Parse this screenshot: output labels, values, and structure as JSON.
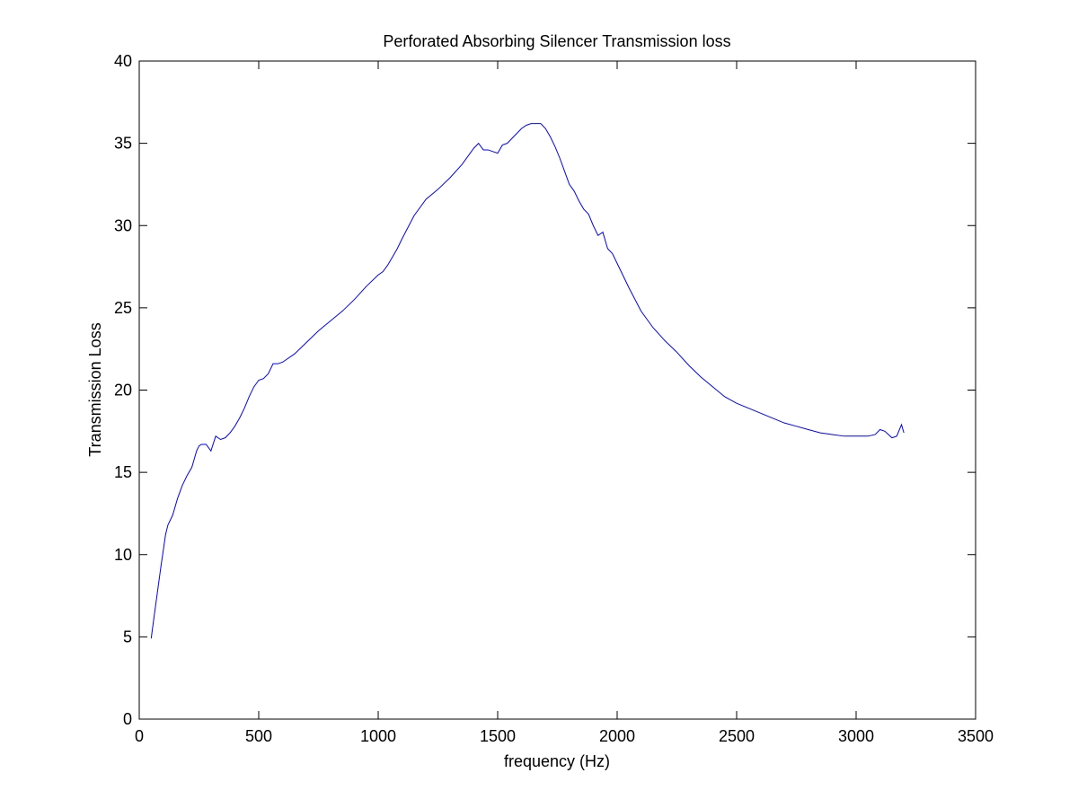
{
  "chart_data": {
    "type": "line",
    "title": "Perforated Absorbing Silencer Transmission loss",
    "xlabel": "frequency (Hz)",
    "ylabel": "Transmission Loss",
    "xlim": [
      0,
      3500
    ],
    "ylim": [
      0,
      40
    ],
    "xticks": [
      0,
      500,
      1000,
      1500,
      2000,
      2500,
      3000,
      3500
    ],
    "yticks": [
      0,
      5,
      10,
      15,
      20,
      25,
      30,
      35,
      40
    ],
    "grid": false,
    "line_color": "#0000ff",
    "series": [
      {
        "x": [
          50,
          60,
          75,
          90,
          100,
          110,
          120,
          140,
          160,
          180,
          200,
          220,
          240,
          250,
          260,
          280,
          300,
          320,
          340,
          360,
          380,
          400,
          420,
          440,
          460,
          480,
          500,
          520,
          540,
          560,
          580,
          600,
          650,
          700,
          750,
          800,
          850,
          900,
          950,
          1000,
          1020,
          1040,
          1060,
          1080,
          1100,
          1150,
          1200,
          1250,
          1300,
          1350,
          1400,
          1420,
          1440,
          1460,
          1480,
          1500,
          1520,
          1540,
          1560,
          1580,
          1600,
          1620,
          1640,
          1660,
          1680,
          1700,
          1720,
          1740,
          1760,
          1780,
          1800,
          1820,
          1840,
          1860,
          1880,
          1900,
          1920,
          1940,
          1960,
          1980,
          2000,
          2050,
          2100,
          2150,
          2200,
          2250,
          2300,
          2350,
          2400,
          2450,
          2500,
          2550,
          2600,
          2650,
          2700,
          2750,
          2800,
          2850,
          2900,
          2950,
          3000,
          3050,
          3080,
          3100,
          3120,
          3150,
          3170,
          3190,
          3200
        ],
        "y": [
          4.9,
          6.0,
          7.6,
          9.2,
          10.2,
          11.2,
          11.8,
          12.4,
          13.4,
          14.2,
          14.8,
          15.3,
          16.3,
          16.6,
          16.7,
          16.7,
          16.3,
          17.2,
          17.0,
          17.1,
          17.4,
          17.8,
          18.3,
          18.9,
          19.6,
          20.2,
          20.6,
          20.7,
          21.0,
          21.6,
          21.6,
          21.7,
          22.2,
          22.9,
          23.6,
          24.2,
          24.8,
          25.5,
          26.3,
          27.0,
          27.2,
          27.6,
          28.1,
          28.6,
          29.2,
          30.6,
          31.6,
          32.2,
          32.9,
          33.7,
          34.7,
          35.0,
          34.6,
          34.6,
          34.5,
          34.4,
          34.9,
          35.0,
          35.3,
          35.6,
          35.9,
          36.1,
          36.2,
          36.2,
          36.2,
          35.9,
          35.4,
          34.8,
          34.1,
          33.3,
          32.5,
          32.1,
          31.5,
          31.0,
          30.7,
          30.0,
          29.4,
          29.6,
          28.6,
          28.3,
          27.7,
          26.2,
          24.8,
          23.8,
          23.0,
          22.3,
          21.5,
          20.8,
          20.2,
          19.6,
          19.2,
          18.9,
          18.6,
          18.3,
          18.0,
          17.8,
          17.6,
          17.4,
          17.3,
          17.2,
          17.2,
          17.2,
          17.3,
          17.6,
          17.5,
          17.1,
          17.2,
          17.9,
          17.4
        ]
      }
    ]
  }
}
